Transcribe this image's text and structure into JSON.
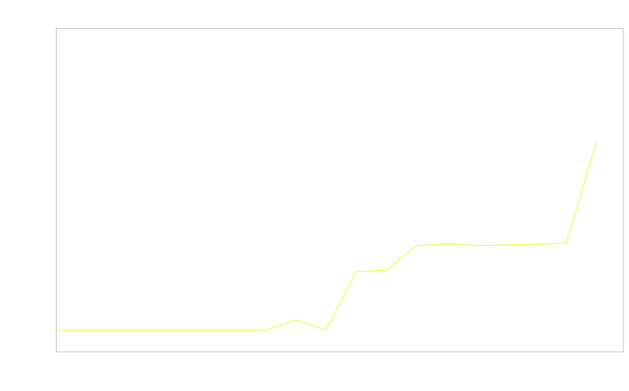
{
  "chart_data": {
    "type": "line",
    "title": "",
    "xlabel": "",
    "ylabel": "",
    "x": [
      0,
      1,
      2,
      3,
      4,
      5,
      6,
      7,
      8,
      9,
      10,
      11,
      12,
      13,
      14,
      15,
      16,
      17,
      18
    ],
    "series": [
      {
        "values": [
          6.7,
          6.7,
          6.7,
          6.7,
          6.7,
          6.7,
          6.7,
          6.7,
          9.9,
          6.7,
          24.8,
          25.2,
          32.8,
          33.4,
          32.8,
          33.0,
          33.2,
          33.6,
          64.7
        ],
        "color": "#ddff00"
      }
    ],
    "xlim": [
      0,
      18.9
    ],
    "ylim": [
      0,
      100
    ],
    "grid": false,
    "legend": "none",
    "frame_color": "#bbbbbb"
  }
}
